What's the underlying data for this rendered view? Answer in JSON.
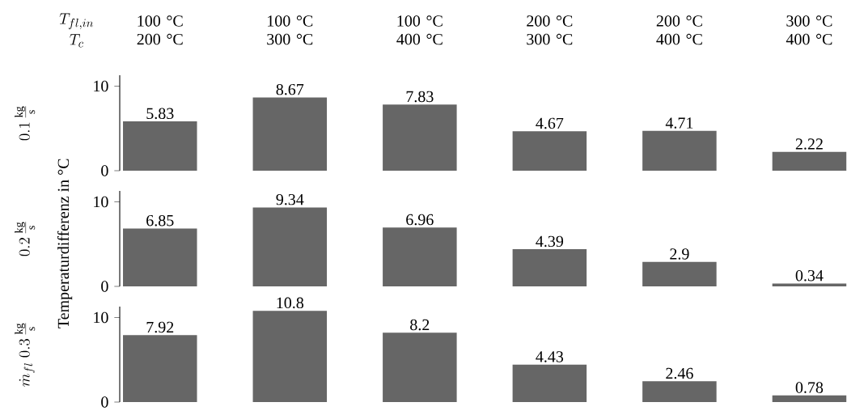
{
  "chart_data": [
    {
      "type": "bar",
      "categories": [
        "100 °C 200 °C",
        "100 °C 300 °C",
        "100 °C 400 °C",
        "200 °C 300 °C",
        "200 °C 400 °C",
        "300 °C 400 °C"
      ],
      "values": [
        5.83,
        8.67,
        7.83,
        4.67,
        4.71,
        2.22
      ],
      "color": "#666666",
      "ylim": [
        0,
        11.3
      ],
      "yticks": [
        0,
        10
      ],
      "data_labels": true,
      "grid": false,
      "ylabel": "0.1\\,\\frac{\\mathrm{kg}}{\\mathrm{s}}",
      "annotations": [
        "T_{fl,in}",
        "T_{c}"
      ]
    },
    {
      "type": "bar",
      "categories": [
        null,
        null,
        null,
        null,
        null,
        null
      ],
      "values": [
        6.85,
        9.34,
        6.96,
        4.39,
        2.9,
        0.34
      ],
      "color": "#666666",
      "ylim": [
        0,
        11.3
      ],
      "yticks": [
        0,
        10
      ],
      "data_labels": true,
      "grid": false,
      "tick_labels": "y",
      "ylabel": "0.2\\,\\frac{\\mathrm{kg}}{\\mathrm{s}}",
      "annotations": [
        "Temperaturdifferenz in °C"
      ]
    },
    {
      "type": "bar",
      "categories": [
        null,
        null,
        null,
        null,
        null,
        null
      ],
      "values": [
        7.92,
        10.8,
        8.2,
        4.43,
        2.46,
        0.78
      ],
      "color": "#666666",
      "ylim": [
        0,
        11.3
      ],
      "yticks": [
        0,
        10
      ],
      "data_labels": true,
      "grid": false,
      "tick_labels": "y",
      "ylabel": "\\dot{m}_{fl}\\;0.3\\,\\frac{\\mathrm{kg}}{\\mathrm{s}}"
    }
  ]
}
